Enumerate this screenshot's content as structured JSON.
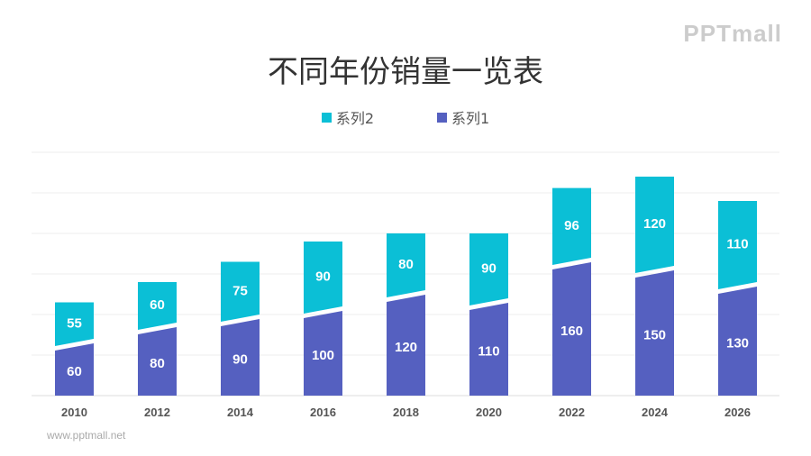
{
  "title": "不同年份销量一览表",
  "logo": "PPTmall",
  "url": "www.pptmall.net",
  "chart_data": {
    "type": "bar",
    "stacked": true,
    "categories": [
      "2010",
      "2012",
      "2014",
      "2016",
      "2018",
      "2020",
      "2022",
      "2024",
      "2026"
    ],
    "series": [
      {
        "name": "系列1",
        "color": "#5560c0",
        "values": [
          60,
          80,
          90,
          100,
          120,
          110,
          160,
          150,
          130
        ]
      },
      {
        "name": "系列2",
        "color": "#0bbfd6",
        "values": [
          55,
          60,
          75,
          90,
          80,
          90,
          96,
          120,
          110
        ]
      }
    ],
    "legend_order": [
      "系列2",
      "系列1"
    ],
    "legend_position": "top",
    "ylim": [
      0,
      300
    ],
    "grid": true,
    "data_labels": true
  }
}
